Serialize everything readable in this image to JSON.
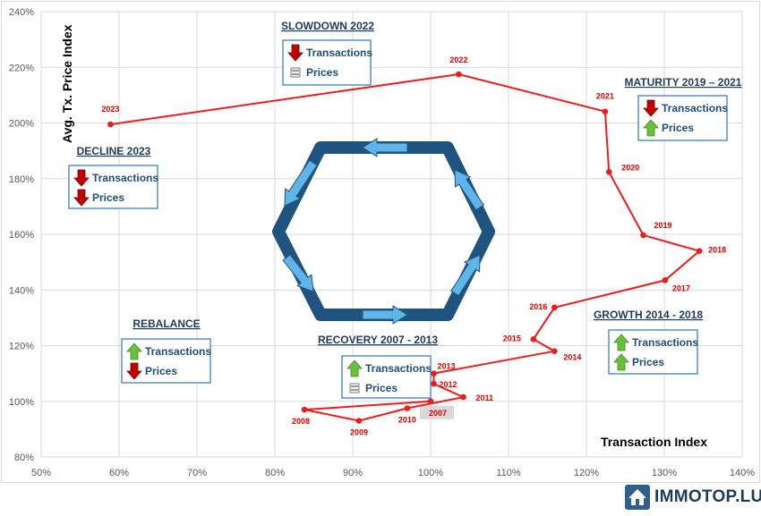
{
  "chart_data": {
    "type": "scatter",
    "xlabel": "Transaction Index",
    "ylabel": "Avg. Tx. Price Index",
    "xlim": [
      50,
      140
    ],
    "ylim": [
      80,
      240
    ],
    "x_ticks": [
      "50%",
      "60%",
      "70%",
      "80%",
      "90%",
      "100%",
      "110%",
      "120%",
      "130%",
      "140%"
    ],
    "y_ticks": [
      "80%",
      "100%",
      "120%",
      "140%",
      "160%",
      "180%",
      "200%",
      "220%",
      "240%"
    ],
    "grid": true,
    "series": [
      {
        "color": "#ee1c1c",
        "points": [
          {
            "label": "2007",
            "x": 100.0,
            "y": 100.0
          },
          {
            "label": "2008",
            "x": 83.8,
            "y": 97.0
          },
          {
            "label": "2009",
            "x": 90.8,
            "y": 93.0
          },
          {
            "label": "2010",
            "x": 97.0,
            "y": 97.5
          },
          {
            "label": "2011",
            "x": 104.2,
            "y": 101.5
          },
          {
            "label": "2012",
            "x": 100.4,
            "y": 106.3
          },
          {
            "label": "2013",
            "x": 100.4,
            "y": 110.0
          },
          {
            "label": "2014",
            "x": 115.9,
            "y": 118.0
          },
          {
            "label": "2015",
            "x": 113.2,
            "y": 122.3
          },
          {
            "label": "2016",
            "x": 115.9,
            "y": 133.7
          },
          {
            "label": "2017",
            "x": 130.1,
            "y": 143.5
          },
          {
            "label": "2018",
            "x": 134.5,
            "y": 154.0
          },
          {
            "label": "2019",
            "x": 127.3,
            "y": 159.7
          },
          {
            "label": "2020",
            "x": 122.9,
            "y": 182.4
          },
          {
            "label": "2021",
            "x": 122.4,
            "y": 204.1
          },
          {
            "label": "2022",
            "x": 103.6,
            "y": 217.5
          },
          {
            "label": "2023",
            "x": 58.9,
            "y": 199.5
          }
        ]
      }
    ],
    "annotations": [
      {
        "title": "SLOWDOWN 2022",
        "items": [
          {
            "label": "Transactions",
            "indicator": "down"
          },
          {
            "label": "Prices",
            "indicator": "flat"
          }
        ]
      },
      {
        "title": "MATURITY 2019 – 2021",
        "items": [
          {
            "label": "Transactions",
            "indicator": "down"
          },
          {
            "label": "Prices",
            "indicator": "up"
          }
        ]
      },
      {
        "title": "DECLINE 2023",
        "items": [
          {
            "label": "Transactions",
            "indicator": "down"
          },
          {
            "label": "Prices",
            "indicator": "down"
          }
        ]
      },
      {
        "title": "REBALANCE",
        "items": [
          {
            "label": "Transactions",
            "indicator": "up"
          },
          {
            "label": "Prices",
            "indicator": "down"
          }
        ]
      },
      {
        "title": "RECOVERY 2007 - 2013",
        "items": [
          {
            "label": "Transactions",
            "indicator": "up"
          },
          {
            "label": "Prices",
            "indicator": "flat"
          }
        ]
      },
      {
        "title": "GROWTH 2014 - 2018",
        "items": [
          {
            "label": "Transactions",
            "indicator": "up"
          },
          {
            "label": "Prices",
            "indicator": "up"
          }
        ]
      }
    ],
    "highlighted_point": "2007"
  },
  "colors": {
    "series": "#ee1c1c",
    "arrow_up": "#6abf3f",
    "arrow_down": "#c00000",
    "flat": "#7f7f7f",
    "box_border": "#2e75b6",
    "cycle_stroke": "#1f5480",
    "cycle_arrow": "#5fb4e8"
  },
  "brand": {
    "name": "IMMOTOP.LU",
    "icon": "house-icon"
  }
}
